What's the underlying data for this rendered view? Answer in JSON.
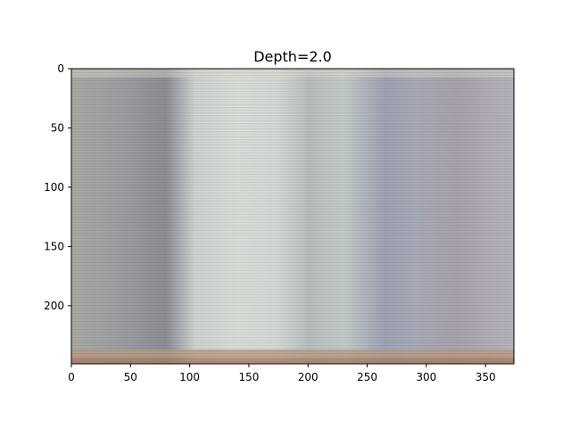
{
  "chart_data": {
    "type": "heatmap",
    "title": "Depth=2.0",
    "xlabel": "",
    "ylabel": "",
    "xlim": [
      0,
      374
    ],
    "ylim": [
      249,
      0
    ],
    "y_inverted": true,
    "grid": false,
    "xticks": [
      0,
      50,
      100,
      150,
      200,
      250,
      300,
      350
    ],
    "yticks": [
      0,
      50,
      100,
      150,
      200
    ],
    "image": {
      "width": 374,
      "height": 249,
      "column_color_profile": [
        {
          "x": 0,
          "color": "#a8a9a2"
        },
        {
          "x": 40,
          "color": "#9d9fa3"
        },
        {
          "x": 80,
          "color": "#8c8e95"
        },
        {
          "x": 105,
          "color": "#cfd3cf"
        },
        {
          "x": 140,
          "color": "#d8ddd8"
        },
        {
          "x": 175,
          "color": "#d4d8d4"
        },
        {
          "x": 200,
          "color": "#b8bebf"
        },
        {
          "x": 230,
          "color": "#c3cbc8"
        },
        {
          "x": 265,
          "color": "#9ea2b4"
        },
        {
          "x": 290,
          "color": "#a9abb8"
        },
        {
          "x": 325,
          "color": "#a8a2ad"
        },
        {
          "x": 374,
          "color": "#b7b3bd"
        }
      ],
      "row_bands": [
        {
          "y": 0,
          "color": "#d8d8c8"
        },
        {
          "y": 237,
          "color": "#b89a82"
        },
        {
          "y": 244,
          "color": "#aa7e66"
        }
      ]
    }
  }
}
